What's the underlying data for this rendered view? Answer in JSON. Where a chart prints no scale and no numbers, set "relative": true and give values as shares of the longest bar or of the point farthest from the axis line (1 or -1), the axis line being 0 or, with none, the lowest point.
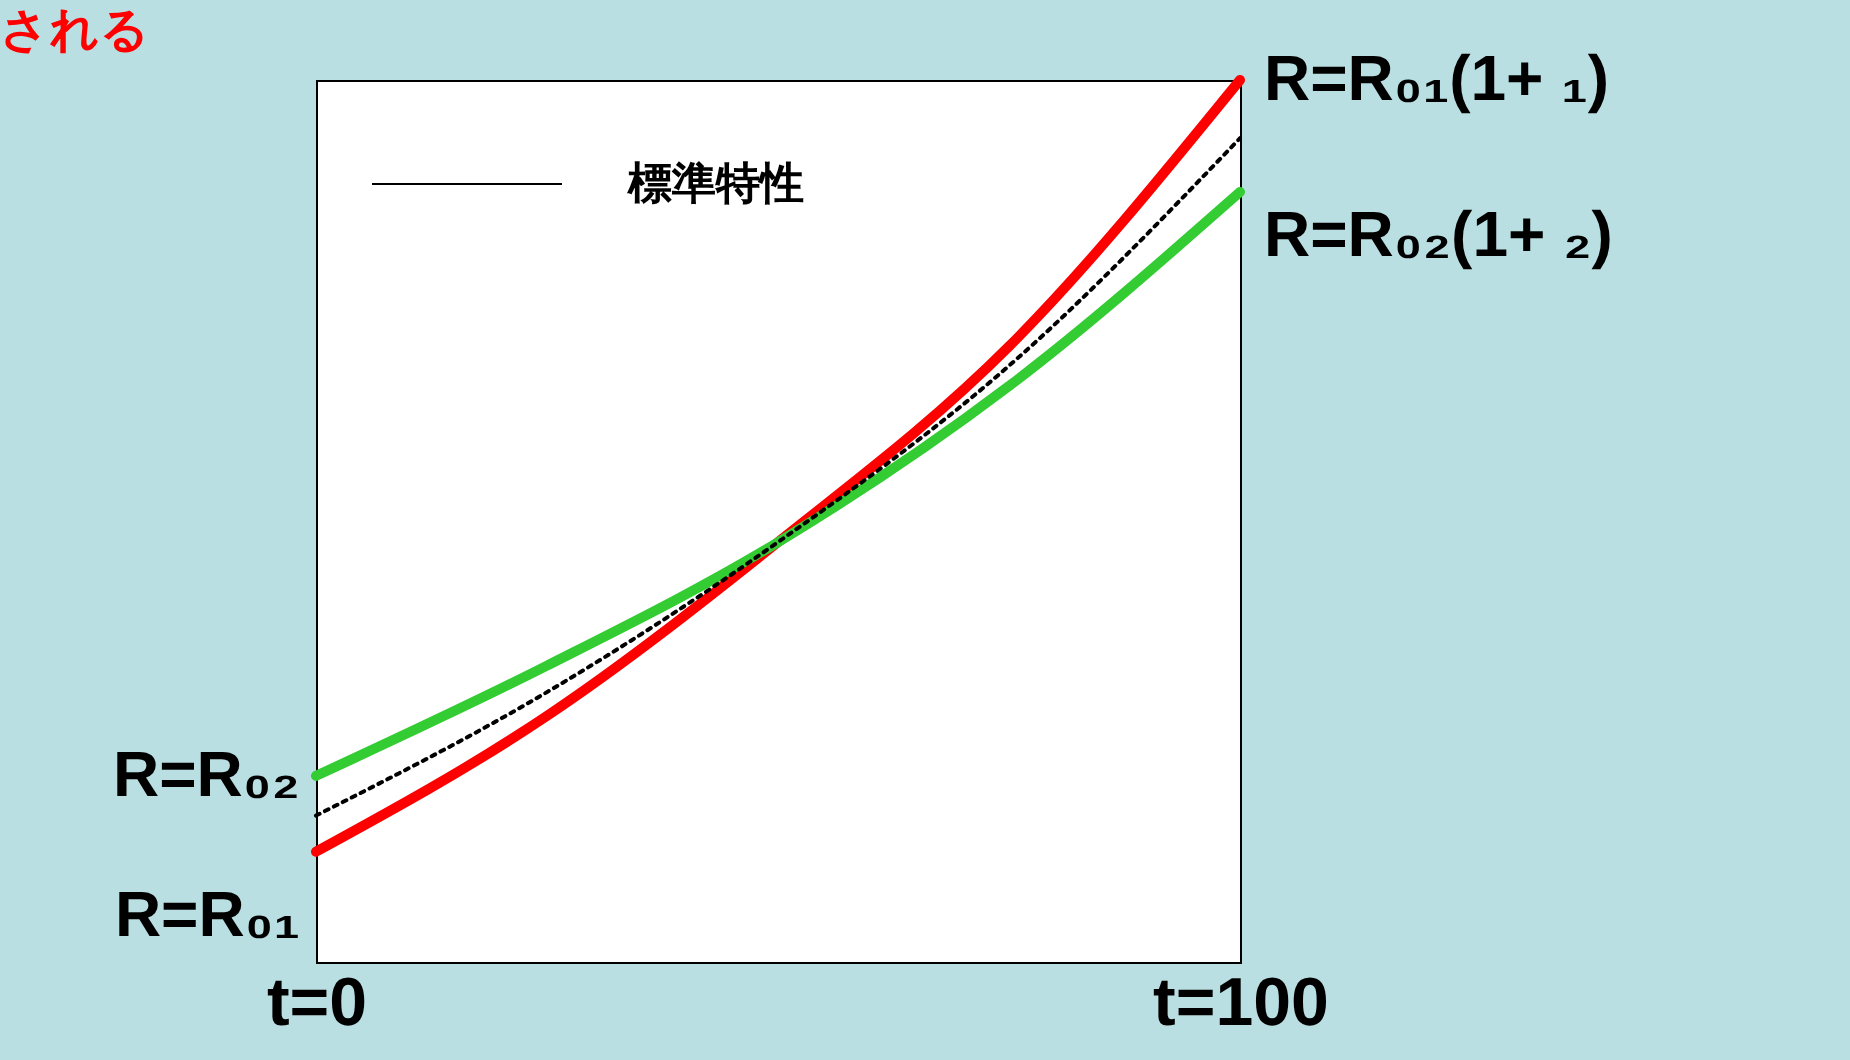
{
  "chart_data": {
    "type": "line",
    "title": "される",
    "relative": true,
    "x": [
      0,
      25,
      50,
      75,
      100
    ],
    "xlim": [
      0,
      100
    ],
    "xticks": [
      {
        "value": 0,
        "label": "t=0"
      },
      {
        "value": 100,
        "label": "t=100"
      }
    ],
    "series": [
      {
        "name": "R=R₀₁(1+ ₁)",
        "color": "#ff0000",
        "line_style": "solid",
        "values": [
          0.125,
          0.279,
          0.476,
          0.698,
          1.0
        ]
      },
      {
        "name": "R=R₀₂(1+ ₂)",
        "color": "#33cc33",
        "line_style": "solid",
        "values": [
          0.211,
          0.336,
          0.476,
          0.653,
          0.873
        ]
      },
      {
        "name": "標準特性",
        "color": "#000000",
        "line_style": "dotted",
        "values": [
          0.166,
          0.306,
          0.476,
          0.676,
          0.934
        ]
      }
    ],
    "annotations": [
      {
        "text": "R=R₀₂",
        "x": 0,
        "y": 0.211
      },
      {
        "text": "R=R₀₁",
        "x": 0,
        "y": 0.125
      }
    ],
    "legend": "top left"
  }
}
